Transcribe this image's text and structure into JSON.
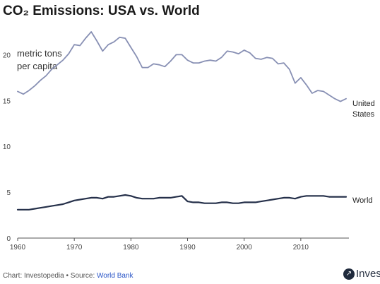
{
  "title": "CO₂ Emissions: USA vs. World",
  "footer": {
    "credit": "Chart: Investopedia • Source: ",
    "source": "World Bank"
  },
  "brand": {
    "text": "Inves",
    "icon": "investopedia-logo-icon"
  },
  "chart_data": {
    "type": "line",
    "title": "CO₂ Emissions: USA vs. World",
    "ylabel": "metric tons per capita",
    "ylabel_lines": [
      "metric tons",
      "per capita"
    ],
    "xlabel": "",
    "xlim": [
      1960,
      2018
    ],
    "ylim": [
      0,
      22.5
    ],
    "x_ticks": [
      1960,
      1970,
      1980,
      1990,
      2000,
      2010
    ],
    "y_ticks": [
      0,
      5,
      10,
      15,
      20
    ],
    "grid": false,
    "legend": "direct labels at line ends",
    "x": [
      1960,
      1961,
      1962,
      1963,
      1964,
      1965,
      1966,
      1967,
      1968,
      1969,
      1970,
      1971,
      1972,
      1973,
      1974,
      1975,
      1976,
      1977,
      1978,
      1979,
      1980,
      1981,
      1982,
      1983,
      1984,
      1985,
      1986,
      1987,
      1988,
      1989,
      1990,
      1991,
      1992,
      1993,
      1994,
      1995,
      1996,
      1997,
      1998,
      1999,
      2000,
      2001,
      2002,
      2003,
      2004,
      2005,
      2006,
      2007,
      2008,
      2009,
      2010,
      2011,
      2012,
      2013,
      2014,
      2015,
      2016,
      2017,
      2018
    ],
    "series": [
      {
        "name": "United States",
        "label_lines": [
          "United",
          "States"
        ],
        "color": "#8890b4",
        "values": [
          16.0,
          15.7,
          16.1,
          16.6,
          17.2,
          17.7,
          18.4,
          18.9,
          19.4,
          20.1,
          21.1,
          21.0,
          21.8,
          22.5,
          21.5,
          20.4,
          21.1,
          21.4,
          21.9,
          21.8,
          20.8,
          19.8,
          18.6,
          18.6,
          19.0,
          18.9,
          18.7,
          19.3,
          20.0,
          20.0,
          19.4,
          19.1,
          19.1,
          19.3,
          19.4,
          19.3,
          19.7,
          20.4,
          20.3,
          20.1,
          20.5,
          20.2,
          19.6,
          19.5,
          19.7,
          19.6,
          19.0,
          19.1,
          18.4,
          16.9,
          17.5,
          16.7,
          15.8,
          16.1,
          16.0,
          15.6,
          15.2,
          14.9,
          15.2
        ]
      },
      {
        "name": "World",
        "label_lines": [
          "World"
        ],
        "color": "#25304a",
        "values": [
          3.1,
          3.1,
          3.1,
          3.2,
          3.3,
          3.4,
          3.5,
          3.6,
          3.7,
          3.9,
          4.1,
          4.2,
          4.3,
          4.4,
          4.4,
          4.3,
          4.5,
          4.5,
          4.6,
          4.7,
          4.6,
          4.4,
          4.3,
          4.3,
          4.3,
          4.4,
          4.4,
          4.4,
          4.5,
          4.6,
          4.0,
          3.9,
          3.9,
          3.8,
          3.8,
          3.8,
          3.9,
          3.9,
          3.8,
          3.8,
          3.9,
          3.9,
          3.9,
          4.0,
          4.1,
          4.2,
          4.3,
          4.4,
          4.4,
          4.3,
          4.5,
          4.6,
          4.6,
          4.6,
          4.6,
          4.5,
          4.5,
          4.5,
          4.5
        ]
      }
    ]
  }
}
